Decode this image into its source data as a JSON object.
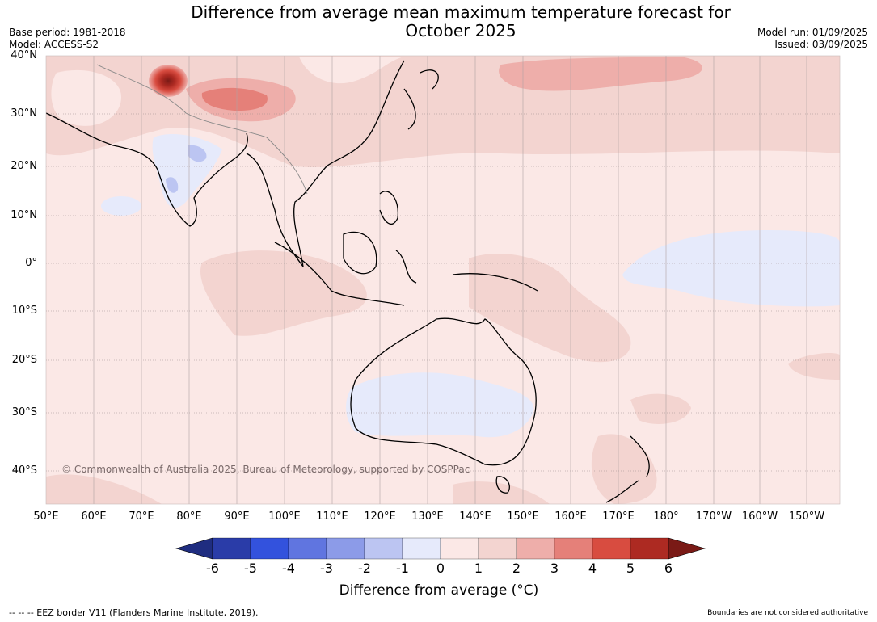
{
  "title_line1": "Difference from average mean maximum temperature forecast for",
  "title_line2": "October 2025",
  "base_period": "Base period: 1981-2018",
  "model": "Model: ACCESS-S2",
  "model_run": "Model run: 01/09/2025",
  "issued": "Issued: 03/09/2025",
  "lat_labels": [
    "40°N",
    "30°N",
    "20°N",
    "10°N",
    "0°",
    "10°S",
    "20°S",
    "30°S",
    "40°S"
  ],
  "lon_labels": [
    "50°E",
    "60°E",
    "70°E",
    "80°E",
    "90°E",
    "100°E",
    "110°E",
    "120°E",
    "130°E",
    "140°E",
    "150°E",
    "160°E",
    "170°E",
    "180°",
    "170°W",
    "160°W",
    "150°W"
  ],
  "copyright": "© Commonwealth of Australia 2025, Bureau of Meteorology, supported by COSPPac",
  "colorbar": {
    "ticks": [
      "-6",
      "-5",
      "-4",
      "-3",
      "-2",
      "-1",
      "0",
      "1",
      "2",
      "3",
      "4",
      "5",
      "6"
    ],
    "colors": [
      "#1f2d80",
      "#2a3ca8",
      "#3352dd",
      "#6075e0",
      "#8c9be8",
      "#bcc5f2",
      "#e6eafb",
      "#fbe8e6",
      "#f3d4d0",
      "#eeaeaa",
      "#e58079",
      "#d84c40",
      "#ad2a22",
      "#7a1a16"
    ],
    "label": "Difference from average (°C)"
  },
  "footer_left": "--  --  -- EEZ border V11 (Flanders Marine Institute, 2019).",
  "footer_right": "Boundaries are not considered authoritative"
}
